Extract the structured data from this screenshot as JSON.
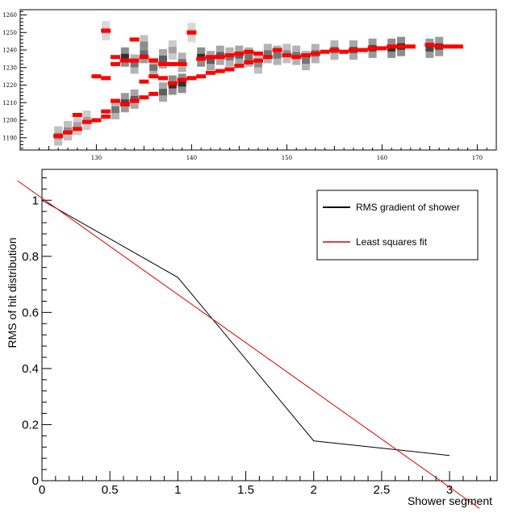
{
  "chart_data": [
    {
      "type": "heatmap",
      "xlim": [
        122,
        172
      ],
      "ylim": [
        1183,
        1263
      ],
      "xticks": [
        "130",
        "140",
        "150",
        "160",
        "170"
      ],
      "yticks": [
        "1190",
        "1200",
        "1210",
        "1220",
        "1230",
        "1240",
        "1250",
        "1260"
      ],
      "hit_color": "#ff0000",
      "hits": [
        [
          126,
          1191
        ],
        [
          127,
          1193
        ],
        [
          128,
          1195
        ],
        [
          128,
          1203
        ],
        [
          129,
          1199
        ],
        [
          130,
          1200
        ],
        [
          131,
          1202
        ],
        [
          131,
          1205
        ],
        [
          131,
          1251
        ],
        [
          130,
          1225
        ],
        [
          131,
          1224
        ],
        [
          132,
          1211
        ],
        [
          132,
          1232
        ],
        [
          132,
          1236
        ],
        [
          133,
          1209
        ],
        [
          133,
          1234
        ],
        [
          134,
          1211
        ],
        [
          134,
          1234
        ],
        [
          134,
          1246
        ],
        [
          135,
          1213
        ],
        [
          135,
          1222
        ],
        [
          135,
          1236
        ],
        [
          136,
          1215
        ],
        [
          136,
          1225
        ],
        [
          136,
          1234
        ],
        [
          137,
          1224
        ],
        [
          137,
          1232
        ],
        [
          138,
          1221
        ],
        [
          138,
          1232
        ],
        [
          139,
          1223
        ],
        [
          139,
          1232
        ],
        [
          140,
          1224
        ],
        [
          140,
          1250
        ],
        [
          141,
          1225
        ],
        [
          141,
          1235
        ],
        [
          142,
          1227
        ],
        [
          142,
          1236
        ],
        [
          143,
          1228
        ],
        [
          143,
          1236
        ],
        [
          144,
          1229
        ],
        [
          144,
          1237
        ],
        [
          145,
          1231
        ],
        [
          145,
          1238
        ],
        [
          146,
          1233
        ],
        [
          146,
          1239
        ],
        [
          147,
          1234
        ],
        [
          147,
          1238
        ],
        [
          148,
          1236
        ],
        [
          149,
          1240
        ],
        [
          150,
          1237
        ],
        [
          151,
          1236
        ],
        [
          152,
          1237
        ],
        [
          153,
          1238
        ],
        [
          154,
          1239
        ],
        [
          155,
          1240
        ],
        [
          156,
          1239
        ],
        [
          157,
          1240
        ],
        [
          158,
          1240
        ],
        [
          159,
          1241
        ],
        [
          160,
          1241
        ],
        [
          161,
          1242
        ],
        [
          162,
          1242
        ],
        [
          163,
          1242
        ],
        [
          165,
          1243
        ],
        [
          166,
          1242
        ],
        [
          167,
          1242
        ],
        [
          168,
          1242
        ]
      ],
      "density": [
        [
          126,
          1191,
          0.5
        ],
        [
          127,
          1194,
          0.5
        ],
        [
          128,
          1197,
          0.4
        ],
        [
          129,
          1200,
          0.4
        ],
        [
          131,
          1251,
          0.3
        ],
        [
          132,
          1206,
          0.6
        ],
        [
          133,
          1210,
          0.8
        ],
        [
          133,
          1236,
          0.9
        ],
        [
          134,
          1212,
          0.7
        ],
        [
          134,
          1232,
          0.6
        ],
        [
          135,
          1238,
          0.8
        ],
        [
          135,
          1243,
          0.5
        ],
        [
          136,
          1230,
          0.6
        ],
        [
          137,
          1216,
          0.7
        ],
        [
          137,
          1235,
          0.7
        ],
        [
          138,
          1220,
          0.9
        ],
        [
          138,
          1240,
          0.4
        ],
        [
          139,
          1221,
          0.9
        ],
        [
          139,
          1233,
          0.6
        ],
        [
          140,
          1250,
          0.3
        ],
        [
          141,
          1236,
          0.9
        ],
        [
          142,
          1234,
          0.7
        ],
        [
          143,
          1237,
          0.7
        ],
        [
          144,
          1236,
          0.6
        ],
        [
          145,
          1237,
          0.7
        ],
        [
          146,
          1236,
          0.6
        ],
        [
          147,
          1232,
          0.5
        ],
        [
          148,
          1238,
          0.6
        ],
        [
          149,
          1237,
          0.6
        ],
        [
          150,
          1238,
          0.5
        ],
        [
          151,
          1237,
          0.6
        ],
        [
          152,
          1234,
          0.6
        ],
        [
          153,
          1238,
          0.6
        ],
        [
          155,
          1240,
          0.6
        ],
        [
          157,
          1240,
          0.7
        ],
        [
          159,
          1241,
          0.8
        ],
        [
          161,
          1241,
          0.9
        ],
        [
          162,
          1242,
          0.9
        ],
        [
          165,
          1241,
          0.8
        ],
        [
          166,
          1242,
          0.8
        ]
      ]
    },
    {
      "type": "line",
      "xlabel": "Shower segment",
      "ylabel": "RMS of hit distribution",
      "xlim": [
        0,
        3.35
      ],
      "ylim": [
        0,
        1.11
      ],
      "xticks": [
        "0",
        "0.5",
        "1",
        "1.5",
        "2",
        "2.5",
        "3"
      ],
      "yticks": [
        "0",
        "0.2",
        "0.4",
        "0.6",
        "0.8",
        "1"
      ],
      "series": [
        {
          "name": "RMS gradient of shower",
          "color": "#000000",
          "x": [
            0,
            1,
            2,
            3
          ],
          "y": [
            1.0,
            0.725,
            0.142,
            0.09
          ]
        },
        {
          "name": "Least squares fit",
          "color": "#dd0000",
          "slope": -0.3436,
          "intercept": 1.0075
        }
      ],
      "legend": "top-right"
    }
  ]
}
